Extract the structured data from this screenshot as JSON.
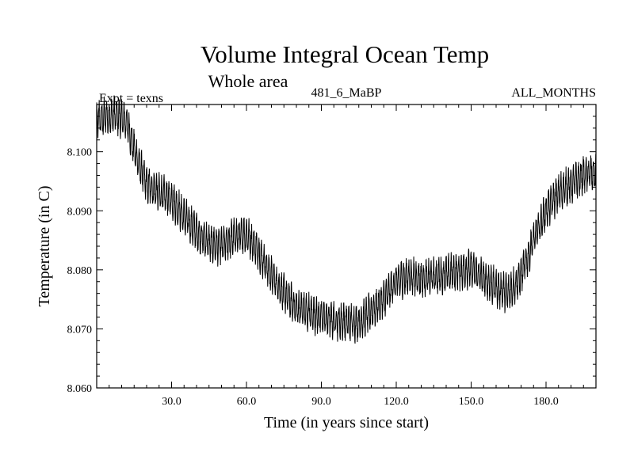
{
  "chart_data": {
    "type": "line",
    "title": "Volume Integral Ocean Temp",
    "subtitle": "Whole area",
    "header_left": "Expt = texns",
    "header_center": "481_6_MaBP",
    "header_right": "ALL_MONTHS",
    "xlabel": "Time (in years since start)",
    "ylabel": "Temperature (in C)",
    "xlim": [
      0,
      200
    ],
    "ylim": [
      8.06,
      8.108
    ],
    "x_ticks": [
      {
        "value": 30,
        "label": "30.0"
      },
      {
        "value": 60,
        "label": "60.0"
      },
      {
        "value": 90,
        "label": "90.0"
      },
      {
        "value": 120,
        "label": "120.0"
      },
      {
        "value": 150,
        "label": "150.0"
      },
      {
        "value": 180,
        "label": "180.0"
      }
    ],
    "y_ticks": [
      {
        "value": 8.06,
        "label": "8.060"
      },
      {
        "value": 8.07,
        "label": "8.070"
      },
      {
        "value": 8.08,
        "label": "8.080"
      },
      {
        "value": 8.09,
        "label": "8.090"
      },
      {
        "value": 8.1,
        "label": "8.100"
      }
    ],
    "series": [
      {
        "name": "Volume integral ocean temperature",
        "color": "#000000",
        "seasonal_amplitude": 0.0025,
        "trend": {
          "x": [
            0,
            3,
            8,
            12,
            16,
            20,
            25,
            30,
            35,
            40,
            45,
            50,
            55,
            60,
            65,
            70,
            75,
            80,
            85,
            90,
            95,
            100,
            105,
            110,
            115,
            120,
            125,
            130,
            135,
            140,
            145,
            150,
            155,
            160,
            165,
            170,
            175,
            180,
            185,
            190,
            195,
            200
          ],
          "y": [
            8.1055,
            8.1058,
            8.1062,
            8.105,
            8.099,
            8.0945,
            8.093,
            8.092,
            8.089,
            8.0865,
            8.0845,
            8.084,
            8.0855,
            8.086,
            8.083,
            8.079,
            8.076,
            8.0735,
            8.0728,
            8.072,
            8.0715,
            8.0712,
            8.071,
            8.073,
            8.075,
            8.078,
            8.079,
            8.0785,
            8.0788,
            8.0792,
            8.0798,
            8.0802,
            8.0785,
            8.077,
            8.076,
            8.079,
            8.085,
            8.09,
            8.093,
            8.0945,
            8.096,
            8.0965
          ]
        }
      }
    ]
  }
}
